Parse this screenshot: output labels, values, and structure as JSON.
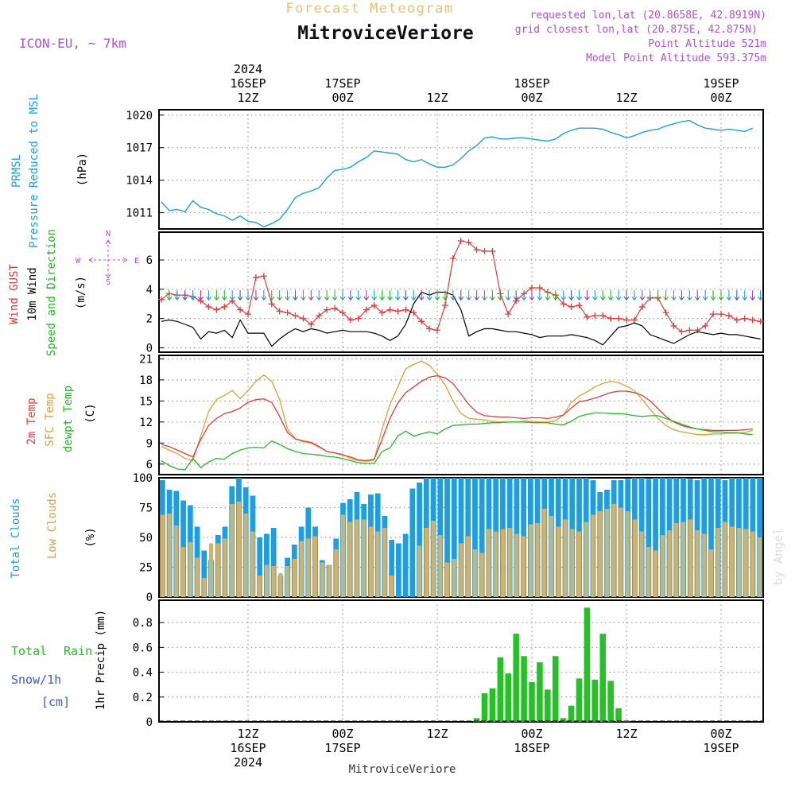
{
  "header": {
    "product": "Forecast Meteogram",
    "location": "MitroviceVeriore",
    "model": "ICON-EU, ~ 7km",
    "requested": "requested lon,lat (20.8658E, 42.8919N)",
    "closest": "grid closest lon,lat (20.875E, 42.875N)",
    "point_alt": "Point Altitude 521m",
    "model_alt": "Model Point Altitude 593.375m",
    "footer": "MitroviceVeriore",
    "credit": "by Angel"
  },
  "time_axis": {
    "top_labels": [
      {
        "hour": 0,
        "lines": [
          "2024",
          "16SEP",
          "12Z"
        ]
      },
      {
        "hour": 12,
        "lines": [
          "17SEP",
          "00Z"
        ]
      },
      {
        "hour": 24,
        "lines": [
          "12Z"
        ]
      },
      {
        "hour": 36,
        "lines": [
          "18SEP",
          "00Z"
        ]
      },
      {
        "hour": 48,
        "lines": [
          "12Z"
        ]
      },
      {
        "hour": 60,
        "lines": [
          "19SEP",
          "00Z"
        ]
      }
    ],
    "bottom_labels": [
      {
        "hour": 0,
        "lines": [
          "12Z",
          "16SEP",
          "2024"
        ]
      },
      {
        "hour": 12,
        "lines": [
          "00Z",
          "17SEP"
        ]
      },
      {
        "hour": 24,
        "lines": [
          "12Z"
        ]
      },
      {
        "hour": 36,
        "lines": [
          "00Z",
          "18SEP"
        ]
      },
      {
        "hour": 48,
        "lines": [
          "12Z"
        ]
      },
      {
        "hour": 60,
        "lines": [
          "00Z",
          "19SEP"
        ]
      }
    ],
    "range_hours_from_16SEP_12Z": [
      -11,
      65
    ]
  },
  "colors": {
    "prmsl": "#1a9fe6",
    "gust": "#e83a3a",
    "wind": "#000000",
    "t2m": "#e83a3a",
    "sfc": "#e0a030",
    "dewpt": "#22bb22",
    "total_clouds": "#1a9fe6",
    "low_clouds": "#d9b060",
    "rain": "#22c322",
    "snow": "#3b5bdb",
    "header_gold": "#f0c070",
    "header_purple": "#b050e0"
  },
  "panels": {
    "pressure": {
      "labels": [
        "PRMSL",
        "Pressure Reduced to MSL",
        "(hPa)"
      ],
      "ticks": [
        "1020",
        "1017",
        "1014",
        "1011"
      ]
    },
    "wind": {
      "labels": [
        "Wind GUST",
        "10m Wind",
        "Speed and Direction",
        "(m/s)"
      ],
      "ticks": [
        "6",
        "4",
        "2",
        "0"
      ],
      "compass": {
        "n": "N",
        "s": "S",
        "w": "W",
        "e": "E"
      }
    },
    "temp": {
      "labels": [
        "2m Temp",
        "SFC Temp",
        "dewpt Temp",
        "(C)"
      ],
      "ticks": [
        "21",
        "18",
        "15",
        "12",
        "9",
        "6"
      ]
    },
    "clouds": {
      "labels": [
        "Total Clouds",
        "Low Clouds",
        "(%)"
      ],
      "ticks": [
        "100",
        "75",
        "50",
        "25",
        "0"
      ]
    },
    "precip": {
      "labels": [
        "Total",
        "Rain",
        "Snow/1h",
        "[cm]",
        "1hr Precip (mm)"
      ],
      "ticks": [
        "0.8",
        "0.6",
        "0.4",
        "0.2",
        "0"
      ]
    }
  },
  "chart_data": [
    {
      "type": "line",
      "title": "PRMSL",
      "ylabel": "Pressure Reduced to MSL (hPa)",
      "ylim": [
        1009.5,
        1020.5
      ],
      "x_start": -11,
      "x_step": 1,
      "series": [
        {
          "name": "PRMSL",
          "values": [
            1012.0,
            1011.2,
            1011.3,
            1011.1,
            1012.1,
            1011.5,
            1011.3,
            1010.9,
            1010.7,
            1010.3,
            1010.7,
            1010.2,
            1010.1,
            1009.7,
            1010.0,
            1010.4,
            1011.3,
            1012.4,
            1012.8,
            1013.0,
            1013.3,
            1014.2,
            1014.9,
            1015.0,
            1015.2,
            1015.7,
            1016.1,
            1016.7,
            1016.6,
            1016.5,
            1016.4,
            1015.9,
            1015.7,
            1015.9,
            1015.5,
            1015.2,
            1015.2,
            1015.4,
            1016.0,
            1016.7,
            1017.2,
            1017.9,
            1018.0,
            1017.8,
            1017.8,
            1017.9,
            1017.9,
            1017.8,
            1017.7,
            1017.6,
            1017.8,
            1018.3,
            1018.6,
            1018.8,
            1018.8,
            1018.8,
            1018.7,
            1018.4,
            1018.2,
            1017.9,
            1018.1,
            1018.4,
            1018.6,
            1018.7,
            1019.0,
            1019.2,
            1019.4,
            1019.5,
            1019.1,
            1018.8,
            1018.7,
            1018.6,
            1018.7,
            1018.6,
            1018.5,
            1018.8
          ]
        }
      ]
    },
    {
      "type": "line",
      "title": "Wind GUST / 10m Wind Speed and Direction",
      "ylabel": "(m/s)",
      "ylim": [
        -0.3,
        7.9
      ],
      "x_start": -11,
      "x_step": 1,
      "series": [
        {
          "name": "Wind GUST",
          "values": [
            3.3,
            3.7,
            3.6,
            3.6,
            3.5,
            3.2,
            2.8,
            2.6,
            2.8,
            3.2,
            2.6,
            2.3,
            4.8,
            4.9,
            3.0,
            2.5,
            2.4,
            2.2,
            2.0,
            1.6,
            2.2,
            2.6,
            2.7,
            2.4,
            1.9,
            2.0,
            2.6,
            2.9,
            2.4,
            2.6,
            2.5,
            2.6,
            2.4,
            1.8,
            1.3,
            1.2,
            2.9,
            6.1,
            7.3,
            7.2,
            6.7,
            6.6,
            6.6,
            3.7,
            2.3,
            3.2,
            3.7,
            4.1,
            4.1,
            3.8,
            3.6,
            3.0,
            2.8,
            2.9,
            2.1,
            2.2,
            2.2,
            2.0,
            2.0,
            1.9,
            1.9,
            2.8,
            3.4,
            3.4,
            2.4,
            1.5,
            1.1,
            1.2,
            1.2,
            1.5,
            2.3,
            2.3,
            2.2,
            1.9,
            2.0,
            1.9,
            1.8,
            1.8
          ]
        },
        {
          "name": "10m Wind",
          "values": [
            1.8,
            1.9,
            1.8,
            1.6,
            1.4,
            0.6,
            1.1,
            1.0,
            1.2,
            0.7,
            1.9,
            1.0,
            1.0,
            1.0,
            0.1,
            0.6,
            1.0,
            1.3,
            1.1,
            1.3,
            1.2,
            1.0,
            1.1,
            1.2,
            1.1,
            1.1,
            1.1,
            1.0,
            0.8,
            0.5,
            0.8,
            1.6,
            3.0,
            3.8,
            3.6,
            3.8,
            3.8,
            3.6,
            2.6,
            0.8,
            1.1,
            1.3,
            1.3,
            1.2,
            1.1,
            1.1,
            1.0,
            0.9,
            0.7,
            0.8,
            0.8,
            0.8,
            0.9,
            0.8,
            0.7,
            0.5,
            0.2,
            0.8,
            1.4,
            1.5,
            1.7,
            1.5,
            0.9,
            0.7,
            0.5,
            0.3,
            0.6,
            0.9,
            1.1,
            1.0,
            0.9,
            1.0,
            0.9,
            0.9,
            0.8,
            0.7,
            0.6,
            0.5
          ]
        }
      ]
    },
    {
      "type": "line",
      "title": "2m Temp / SFC Temp / dewpt Temp",
      "ylabel": "(C)",
      "ylim": [
        4.5,
        21.5
      ],
      "x_start": -11,
      "x_step": 1,
      "series": [
        {
          "name": "2m Temp",
          "values": [
            8.8,
            8.5,
            8.0,
            7.5,
            7.0,
            9.5,
            11.5,
            12.5,
            13.2,
            13.5,
            14.0,
            14.8,
            15.2,
            15.3,
            14.8,
            12.8,
            10.5,
            9.6,
            9.3,
            9.1,
            8.5,
            7.8,
            7.6,
            7.3,
            7.0,
            6.6,
            6.5,
            6.7,
            9.5,
            12.5,
            14.7,
            16.2,
            17.0,
            17.8,
            18.4,
            18.6,
            18.3,
            17.5,
            16.0,
            14.5,
            13.4,
            12.9,
            12.8,
            12.7,
            12.7,
            12.6,
            12.5,
            12.6,
            12.6,
            12.5,
            12.7,
            13.0,
            14.0,
            14.9,
            15.1,
            15.4,
            15.8,
            16.2,
            16.4,
            16.4,
            16.2,
            15.8,
            15.0,
            13.9,
            12.8,
            12.0,
            11.5,
            11.2,
            11.0,
            10.9,
            10.8,
            10.8,
            10.8,
            10.8,
            10.9,
            11.0
          ]
        },
        {
          "name": "SFC Temp",
          "values": [
            8.5,
            8.0,
            7.5,
            6.8,
            6.5,
            10.0,
            13.5,
            15.2,
            15.8,
            16.5,
            15.3,
            16.5,
            17.8,
            18.7,
            17.8,
            15.2,
            11.0,
            9.6,
            9.2,
            9.0,
            8.4,
            7.8,
            7.6,
            7.4,
            6.8,
            6.5,
            6.4,
            6.6,
            11.0,
            14.5,
            17.0,
            19.6,
            20.2,
            20.7,
            20.1,
            18.8,
            17.3,
            15.0,
            13.2,
            12.5,
            12.4,
            12.3,
            12.1,
            12.0,
            12.0,
            12.0,
            12.1,
            12.1,
            12.0,
            12.0,
            12.2,
            13.0,
            14.8,
            15.7,
            16.3,
            17.0,
            17.5,
            17.8,
            17.6,
            17.1,
            16.5,
            15.2,
            13.8,
            12.5,
            11.5,
            10.9,
            10.6,
            10.4,
            10.2,
            10.2,
            10.3,
            10.3,
            10.4,
            10.4,
            10.5,
            10.8
          ]
        },
        {
          "name": "dewpt Temp",
          "values": [
            6.5,
            5.8,
            5.3,
            5.2,
            6.8,
            5.5,
            6.3,
            6.8,
            6.7,
            7.5,
            8.0,
            8.3,
            8.4,
            8.3,
            9.3,
            8.8,
            8.2,
            7.8,
            7.5,
            7.4,
            7.3,
            7.1,
            7.0,
            6.8,
            6.5,
            6.2,
            6.1,
            6.1,
            7.8,
            8.3,
            10.0,
            10.7,
            10.0,
            10.3,
            10.6,
            10.3,
            11.0,
            11.5,
            11.6,
            11.7,
            11.7,
            11.8,
            11.9,
            11.9,
            12.0,
            12.0,
            12.0,
            11.9,
            11.9,
            11.9,
            11.7,
            11.6,
            12.1,
            12.8,
            13.1,
            13.3,
            13.3,
            13.2,
            13.2,
            13.1,
            12.9,
            12.8,
            12.9,
            12.9,
            12.5,
            12.1,
            11.7,
            11.3,
            11.0,
            10.8,
            10.6,
            10.6,
            10.5,
            10.5,
            10.3,
            10.2
          ]
        }
      ]
    },
    {
      "type": "bar",
      "title": "Total Clouds / Low Clouds",
      "ylabel": "(%)",
      "ylim": [
        0,
        100
      ],
      "x_start": -11,
      "x_step": 1,
      "series": [
        {
          "name": "Total Clouds",
          "values": [
            98,
            90,
            89,
            81,
            77,
            59,
            39,
            31,
            52,
            59,
            93,
            100,
            92,
            85,
            50,
            53,
            58,
            18,
            33,
            44,
            59,
            75,
            59,
            31,
            27,
            49,
            79,
            82,
            88,
            78,
            86,
            87,
            68,
            48,
            45,
            53,
            91,
            96,
            100,
            100,
            100,
            100,
            100,
            100,
            100,
            100,
            100,
            100,
            100,
            100,
            100,
            100,
            100,
            100,
            100,
            100,
            100,
            100,
            100,
            100,
            100,
            100,
            98,
            88,
            90,
            98,
            98,
            99,
            100,
            100,
            99,
            100,
            100,
            100,
            100,
            100,
            99,
            98,
            100,
            100,
            100,
            98,
            100,
            100,
            100,
            100,
            100
          ]
        },
        {
          "name": "Low Clouds",
          "values": [
            69,
            70,
            60,
            42,
            46,
            33,
            16,
            45,
            45,
            49,
            78,
            80,
            70,
            55,
            18,
            27,
            26,
            20,
            26,
            32,
            47,
            49,
            51,
            29,
            27,
            40,
            69,
            63,
            65,
            65,
            59,
            55,
            58,
            18,
            0,
            0,
            0,
            43,
            58,
            64,
            52,
            29,
            32,
            45,
            51,
            40,
            37,
            57,
            55,
            57,
            58,
            53,
            51,
            61,
            62,
            74,
            68,
            59,
            65,
            57,
            55,
            63,
            69,
            72,
            74,
            78,
            75,
            72,
            65,
            55,
            42,
            39,
            52,
            56,
            62,
            63,
            65,
            56,
            53,
            40,
            58,
            63,
            59,
            58,
            57,
            55,
            50
          ]
        }
      ]
    },
    {
      "type": "bar",
      "title": "Total Rain Snow/1h",
      "ylabel": "1hr Precip (mm)",
      "ylim": [
        0,
        0.98
      ],
      "x_start": -11,
      "x_step": 1,
      "series": [
        {
          "name": "Total Rain",
          "values": [
            0,
            0,
            0,
            0,
            0,
            0,
            0,
            0,
            0,
            0,
            0,
            0,
            0,
            0,
            0,
            0,
            0,
            0,
            0,
            0,
            0,
            0,
            0,
            0,
            0,
            0,
            0,
            0,
            0,
            0,
            0,
            0,
            0,
            0,
            0,
            0,
            0,
            0,
            0,
            0,
            0.03,
            0.23,
            0.27,
            0.52,
            0.39,
            0.71,
            0.53,
            0.32,
            0.48,
            0.26,
            0.53,
            0.03,
            0.13,
            0.35,
            0.92,
            0.34,
            0.71,
            0.33,
            0.11,
            0.01,
            0,
            0,
            0,
            0,
            0,
            0,
            0,
            0,
            0,
            0,
            0,
            0,
            0,
            0,
            0,
            0,
            0,
            0
          ]
        },
        {
          "name": "Snow/1h",
          "values": [
            0,
            0,
            0,
            0,
            0,
            0,
            0,
            0,
            0,
            0,
            0,
            0,
            0,
            0,
            0,
            0,
            0,
            0,
            0,
            0,
            0,
            0,
            0,
            0,
            0,
            0,
            0,
            0,
            0,
            0,
            0,
            0,
            0,
            0,
            0,
            0,
            0,
            0,
            0,
            0,
            0,
            0,
            0,
            0,
            0,
            0,
            0,
            0,
            0,
            0,
            0,
            0,
            0,
            0,
            0,
            0,
            0,
            0,
            0,
            0,
            0,
            0,
            0,
            0,
            0,
            0,
            0,
            0,
            0,
            0,
            0,
            0,
            0,
            0,
            0,
            0,
            0,
            0
          ]
        }
      ]
    }
  ]
}
